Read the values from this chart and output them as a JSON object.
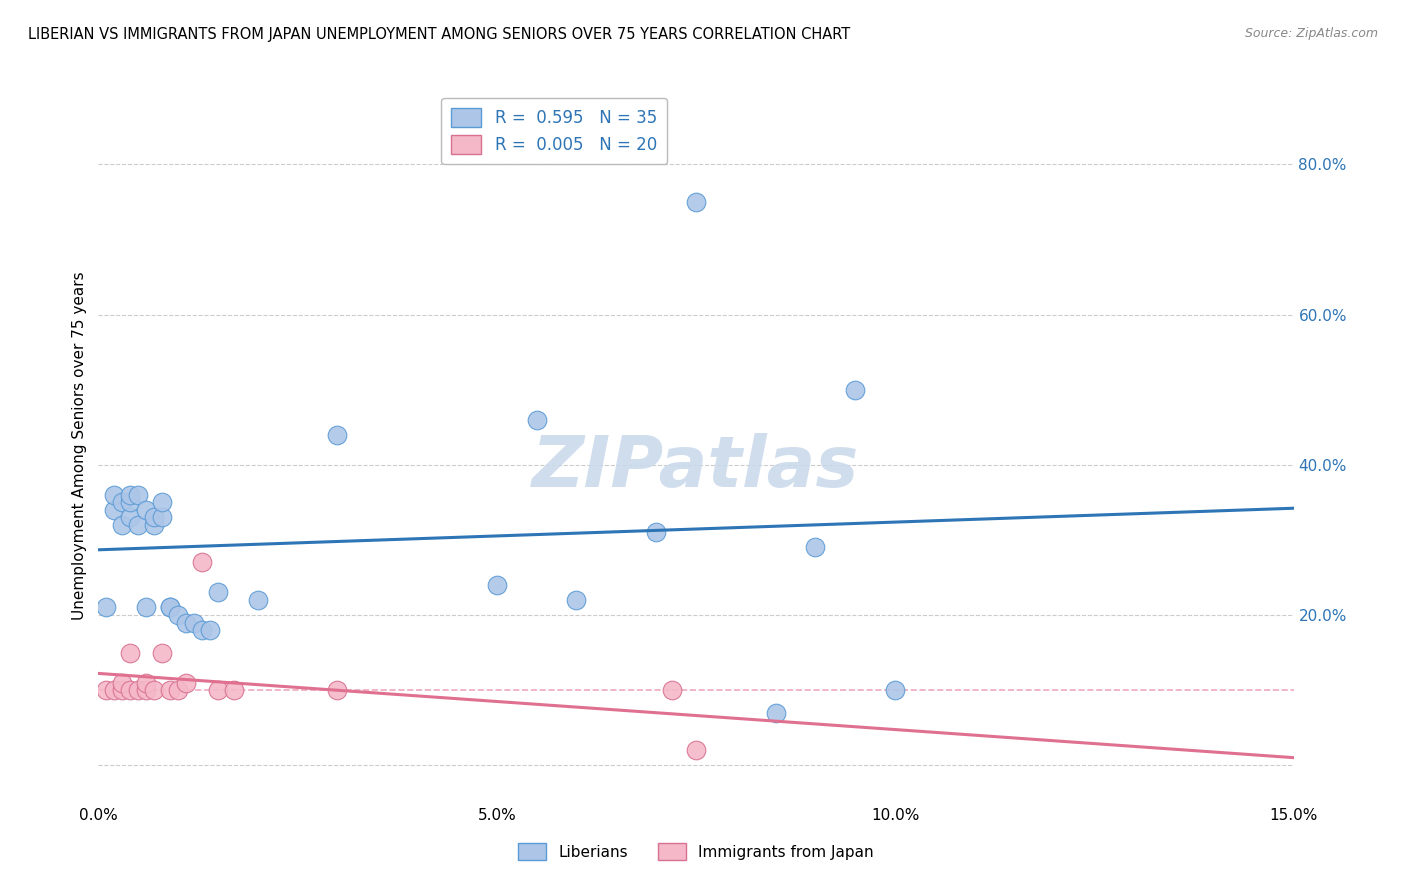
{
  "title": "LIBERIAN VS IMMIGRANTS FROM JAPAN UNEMPLOYMENT AMONG SENIORS OVER 75 YEARS CORRELATION CHART",
  "source": "Source: ZipAtlas.com",
  "ylabel": "Unemployment Among Seniors over 75 years",
  "xlim": [
    0.0,
    0.15
  ],
  "ylim": [
    -0.05,
    0.9
  ],
  "right_yticks": [
    0.0,
    0.2,
    0.4,
    0.6,
    0.8
  ],
  "right_yticklabels": [
    "",
    "20.0%",
    "40.0%",
    "60.0%",
    "80.0%"
  ],
  "xticks": [
    0.0,
    0.05,
    0.1,
    0.15
  ],
  "xticklabels": [
    "0.0%",
    "5.0%",
    "10.0%",
    "15.0%"
  ],
  "legend_r_labels": [
    "R =  0.595   N = 35",
    "R =  0.005   N = 20"
  ],
  "liberian_x": [
    0.001,
    0.002,
    0.002,
    0.003,
    0.003,
    0.004,
    0.004,
    0.004,
    0.005,
    0.005,
    0.006,
    0.006,
    0.007,
    0.007,
    0.008,
    0.008,
    0.009,
    0.009,
    0.01,
    0.011,
    0.012,
    0.013,
    0.014,
    0.015,
    0.02,
    0.03,
    0.05,
    0.055,
    0.06,
    0.07,
    0.075,
    0.085,
    0.09,
    0.095,
    0.1
  ],
  "liberian_y": [
    0.21,
    0.34,
    0.36,
    0.32,
    0.35,
    0.33,
    0.35,
    0.36,
    0.32,
    0.36,
    0.21,
    0.34,
    0.32,
    0.33,
    0.33,
    0.35,
    0.21,
    0.21,
    0.2,
    0.19,
    0.19,
    0.18,
    0.18,
    0.23,
    0.22,
    0.44,
    0.24,
    0.46,
    0.22,
    0.31,
    0.75,
    0.07,
    0.29,
    0.5,
    0.1
  ],
  "japan_x": [
    0.001,
    0.002,
    0.003,
    0.003,
    0.004,
    0.004,
    0.005,
    0.006,
    0.006,
    0.007,
    0.008,
    0.009,
    0.01,
    0.011,
    0.013,
    0.015,
    0.017,
    0.03,
    0.072,
    0.075
  ],
  "japan_y": [
    0.1,
    0.1,
    0.1,
    0.11,
    0.1,
    0.15,
    0.1,
    0.1,
    0.11,
    0.1,
    0.15,
    0.1,
    0.1,
    0.11,
    0.27,
    0.1,
    0.1,
    0.1,
    0.1,
    0.02
  ],
  "blue_scatter_color": "#adc6e8",
  "blue_edge_color": "#5b9bd5",
  "pink_scatter_color": "#f5b8c8",
  "pink_edge_color": "#d87090",
  "blue_line_color": "#2e75b6",
  "pink_line_color": "#e07090",
  "watermark_text": "ZIPatlas",
  "watermark_color": "#c8d8ea",
  "background_color": "#ffffff",
  "grid_color": "#cccccc",
  "bottom_legend_labels": [
    "Liberians",
    "Immigrants from Japan"
  ]
}
